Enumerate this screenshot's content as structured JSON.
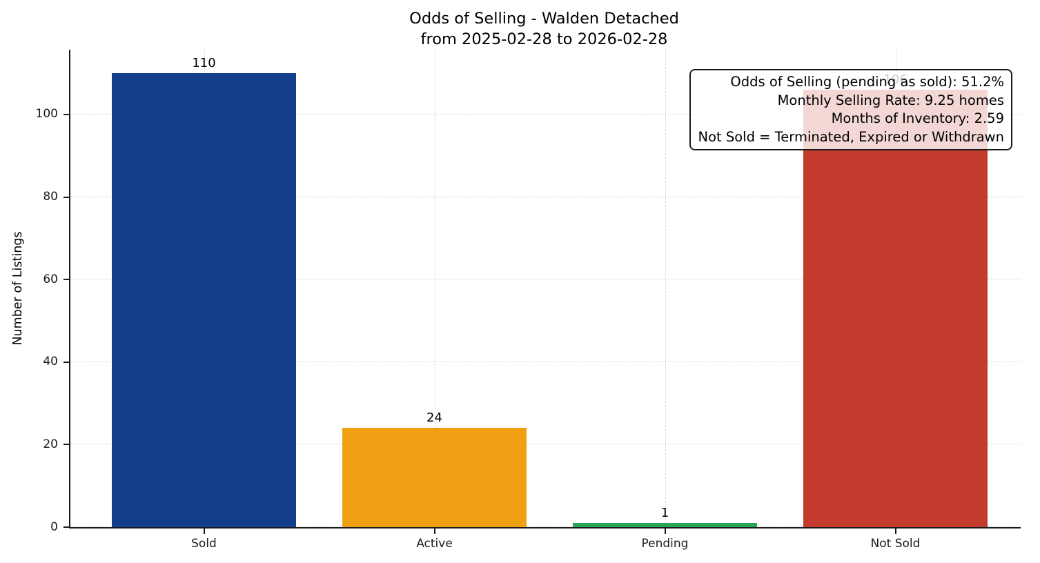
{
  "figure": {
    "title": "Odds of Selling - Walden Detached",
    "subtitle": "from 2025-02-28 to 2026-02-28"
  },
  "chart_data": {
    "type": "bar",
    "title": "Odds of Selling - Walden Detached\nfrom 2025-02-28 to 2026-02-28",
    "categories": [
      "Sold",
      "Active",
      "Pending",
      "Not Sold"
    ],
    "values": [
      110,
      24,
      1,
      106
    ],
    "value_labels": [
      "110",
      "24",
      "1",
      "106"
    ],
    "bar_colors": [
      "#123e8c",
      "#f0a113",
      "#27a45a",
      "#c23b2c"
    ],
    "xlabel": "",
    "ylabel": "Number of Listings",
    "ylim": [
      0,
      115.7
    ],
    "yticks": [
      0,
      20,
      40,
      60,
      80,
      100
    ],
    "grid": "both-dashed",
    "legend_position": "none",
    "annotation": {
      "lines": [
        "Odds of Selling (pending as sold): 51.2%",
        "Monthly Selling Rate: 9.25 homes",
        "Months of Inventory: 2.59",
        "Not Sold = Terminated, Expired or Withdrawn"
      ]
    }
  },
  "style": {
    "grid_color": "#d9d9d9",
    "spine_color": "#1a1a1a",
    "text_color": "#000000",
    "annotation_background": "rgba(255,255,255,0.8)"
  }
}
